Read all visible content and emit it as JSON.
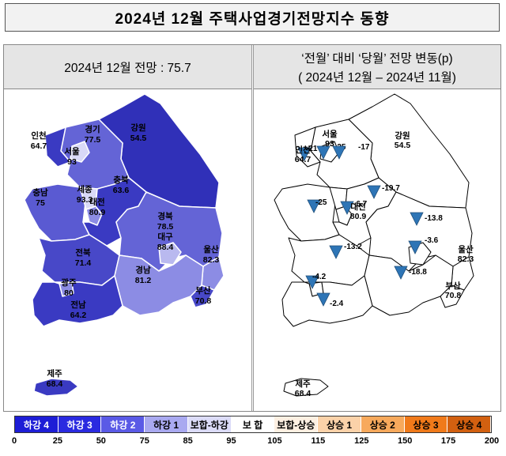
{
  "title": "2024년 12월 주택사업경기전망지수 동향",
  "left_panel": {
    "header": "2024년 12월 전망 : 75.7"
  },
  "right_panel": {
    "header_line1": "‘전월’ 대비 ‘당월’ 전망 변동(p)",
    "header_line2": "( 2024년 12월 –   2024년 11월)"
  },
  "left_regions": [
    {
      "name": "인천",
      "value": "64.7",
      "fill": "#3a3ac2"
    },
    {
      "name": "서울",
      "value": "93",
      "fill": "#d9d9f7"
    },
    {
      "name": "경기",
      "value": "77.5",
      "fill": "#6464d6"
    },
    {
      "name": "강원",
      "value": "54.5",
      "fill": "#3030b8"
    },
    {
      "name": "충남",
      "value": "75",
      "fill": "#5a5ad2"
    },
    {
      "name": "세종",
      "value": "93.3",
      "fill": "#d9d9f7"
    },
    {
      "name": "대전",
      "value": "80.9",
      "fill": "#8c8ce4"
    },
    {
      "name": "충북",
      "value": "63.6",
      "fill": "#3a3ac2"
    },
    {
      "name": "경북",
      "value": "78.5",
      "fill": "#6464d6"
    },
    {
      "name": "대구",
      "value": "88.4",
      "fill": "#b9b9ef"
    },
    {
      "name": "울산",
      "value": "82.3",
      "fill": "#8c8ce4"
    },
    {
      "name": "전북",
      "value": "71.4",
      "fill": "#4848c8"
    },
    {
      "name": "경남",
      "value": "81.2",
      "fill": "#8c8ce4"
    },
    {
      "name": "광주",
      "value": "80",
      "fill": "#8c8ce4"
    },
    {
      "name": "부산",
      "value": "70.8",
      "fill": "#4848c8"
    },
    {
      "name": "전남",
      "value": "64.2",
      "fill": "#3a3ac2"
    },
    {
      "name": "제주",
      "value": "68.4",
      "fill": "#3a3ac2"
    }
  ],
  "right_labels": [
    {
      "name": "서울",
      "value": "93"
    },
    {
      "name": "인천",
      "value": "64.7"
    },
    {
      "name": "강원",
      "value": "54.5"
    },
    {
      "name": "대전",
      "value": "80.9"
    },
    {
      "name": "울산",
      "value": "82.3"
    },
    {
      "name": "부산",
      "value": "70.8"
    },
    {
      "name": "제주",
      "value": "68.4"
    }
  ],
  "right_changes": [
    "-21",
    "-25",
    "-17",
    "-19.7",
    "-25",
    "-6.7",
    "-13.8",
    "-13.2",
    "-3.6",
    "-18.8",
    "-4.2",
    "-2.4"
  ],
  "legend": {
    "cells": [
      {
        "label": "하강 4",
        "color": "#1d1dd6",
        "text_color": "#ffffff"
      },
      {
        "label": "하강 3",
        "color": "#2a2ae0",
        "text_color": "#ffffff"
      },
      {
        "label": "하강 2",
        "color": "#5a5ae6",
        "text_color": "#ffffff"
      },
      {
        "label": "하강 1",
        "color": "#a9a9f0",
        "text_color": "#000000"
      },
      {
        "label": "보합-하강",
        "color": "#dcdcf8",
        "text_color": "#000000"
      },
      {
        "label": "보 합",
        "color": "#ffffff",
        "text_color": "#000000"
      },
      {
        "label": "보합-상승",
        "color": "#fdf0e2",
        "text_color": "#000000"
      },
      {
        "label": "상승 1",
        "color": "#fbd2a9",
        "text_color": "#000000"
      },
      {
        "label": "상승 2",
        "color": "#f7a95c",
        "text_color": "#000000"
      },
      {
        "label": "상승 3",
        "color": "#f07a1a",
        "text_color": "#000000"
      },
      {
        "label": "상승 4",
        "color": "#d26010",
        "text_color": "#000000"
      }
    ],
    "ticks": [
      "0",
      "25",
      "50",
      "75",
      "85",
      "95",
      "105",
      "115",
      "125",
      "150",
      "175",
      "200"
    ]
  }
}
